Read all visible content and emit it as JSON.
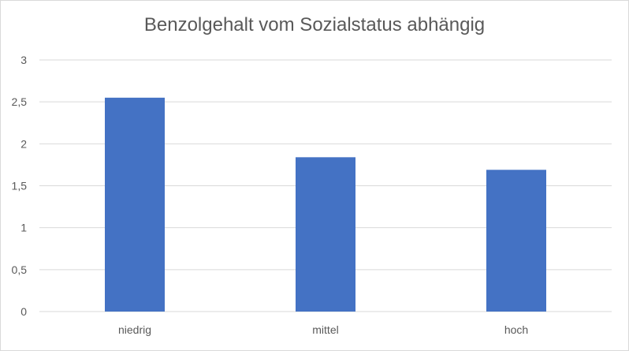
{
  "chart_data": {
    "type": "bar",
    "title": "Benzolgehalt vom Sozialstatus abhängig",
    "categories": [
      "niedrig",
      "mittel",
      "hoch"
    ],
    "values": [
      2.55,
      1.84,
      1.69
    ],
    "ylim": [
      0,
      3
    ],
    "yticks": [
      0,
      0.5,
      1,
      1.5,
      2,
      2.5,
      3
    ],
    "ytick_labels": [
      "0",
      "0,5",
      "1",
      "1,5",
      "2",
      "2,5",
      "3"
    ],
    "xlabel": "",
    "ylabel": "",
    "grid": true,
    "legend": "none",
    "colors": {
      "bar": "#4472c4",
      "grid": "#d9d9d9",
      "text": "#595959"
    }
  }
}
